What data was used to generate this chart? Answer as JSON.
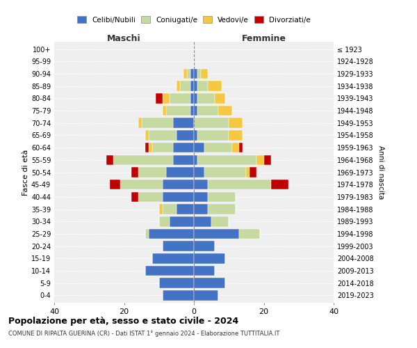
{
  "age_groups": [
    "0-4",
    "5-9",
    "10-14",
    "15-19",
    "20-24",
    "25-29",
    "30-34",
    "35-39",
    "40-44",
    "45-49",
    "50-54",
    "55-59",
    "60-64",
    "65-69",
    "70-74",
    "75-79",
    "80-84",
    "85-89",
    "90-94",
    "95-99",
    "100+"
  ],
  "birth_years": [
    "2019-2023",
    "2014-2018",
    "2009-2013",
    "2004-2008",
    "1999-2003",
    "1994-1998",
    "1989-1993",
    "1984-1988",
    "1979-1983",
    "1974-1978",
    "1969-1973",
    "1964-1968",
    "1959-1963",
    "1954-1958",
    "1949-1953",
    "1944-1948",
    "1939-1943",
    "1934-1938",
    "1929-1933",
    "1924-1928",
    "≤ 1923"
  ],
  "colors": {
    "celibe": "#4472C4",
    "coniugato": "#c5d9a0",
    "vedovo": "#f5c842",
    "divorziato": "#c00000"
  },
  "maschi": {
    "celibe": [
      9,
      10,
      14,
      12,
      9,
      13,
      7,
      5,
      9,
      9,
      8,
      6,
      6,
      5,
      6,
      1,
      1,
      1,
      1,
      0,
      0
    ],
    "coniugato": [
      0,
      0,
      0,
      0,
      0,
      1,
      3,
      4,
      7,
      12,
      8,
      17,
      6,
      8,
      9,
      7,
      6,
      3,
      1,
      0,
      0
    ],
    "vedovo": [
      0,
      0,
      0,
      0,
      0,
      0,
      0,
      1,
      0,
      0,
      0,
      0,
      1,
      1,
      1,
      1,
      2,
      1,
      1,
      0,
      0
    ],
    "divorziato": [
      0,
      0,
      0,
      0,
      0,
      0,
      0,
      0,
      2,
      3,
      2,
      2,
      1,
      0,
      0,
      0,
      2,
      0,
      0,
      0,
      0
    ]
  },
  "femmine": {
    "nubile": [
      7,
      9,
      6,
      9,
      6,
      13,
      5,
      4,
      4,
      4,
      3,
      1,
      3,
      1,
      0,
      1,
      1,
      1,
      1,
      0,
      0
    ],
    "coniugata": [
      0,
      0,
      0,
      0,
      0,
      6,
      5,
      8,
      8,
      18,
      12,
      17,
      8,
      9,
      10,
      6,
      5,
      3,
      1,
      0,
      0
    ],
    "vedova": [
      0,
      0,
      0,
      0,
      0,
      0,
      0,
      0,
      0,
      0,
      1,
      2,
      2,
      4,
      4,
      4,
      3,
      4,
      2,
      0,
      0
    ],
    "divorziata": [
      0,
      0,
      0,
      0,
      0,
      0,
      0,
      0,
      0,
      5,
      2,
      2,
      1,
      0,
      0,
      0,
      0,
      0,
      0,
      0,
      0
    ]
  },
  "xlim": 40,
  "title": "Popolazione per età, sesso e stato civile - 2024",
  "subtitle": "COMUNE DI RIPALTA GUERINA (CR) - Dati ISTAT 1° gennaio 2024 - Elaborazione TUTTITALIA.IT",
  "ylabel_left": "Fasce di età",
  "ylabel_right": "Anni di nascita",
  "xlabel_left": "Maschi",
  "xlabel_right": "Femmine",
  "legend_labels": [
    "Celibi/Nubili",
    "Coniugati/e",
    "Vedovi/e",
    "Divorziati/e"
  ],
  "bg_color": "#efefef"
}
